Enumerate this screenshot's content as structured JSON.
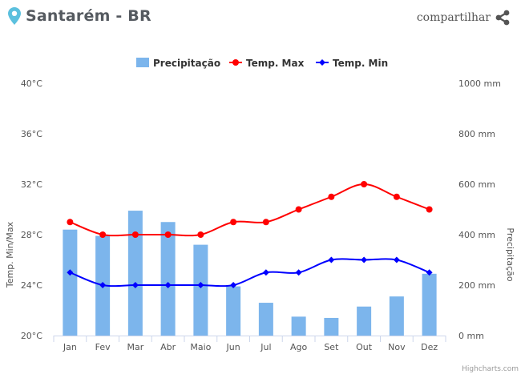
{
  "header": {
    "location": "Santarém - BR",
    "share_label": "compartilhar",
    "pin_icon": "map-pin-icon",
    "share_icon": "share-icon"
  },
  "colors": {
    "precip": "#7cb5ec",
    "max": "#ff0000",
    "min": "#0000ff",
    "title": "#555a60"
  },
  "credits": "Highcharts.com",
  "chart_data": {
    "type": "bar",
    "categories": [
      "Jan",
      "Fev",
      "Mar",
      "Abr",
      "Maio",
      "Jun",
      "Jul",
      "Ago",
      "Set",
      "Out",
      "Nov",
      "Dez"
    ],
    "series": [
      {
        "name": "Precipitação",
        "type": "bar",
        "axis": "right",
        "values": [
          420,
          395,
          495,
          450,
          360,
          195,
          130,
          75,
          70,
          115,
          155,
          245
        ]
      },
      {
        "name": "Temp. Max",
        "type": "line",
        "axis": "left",
        "values": [
          29,
          28,
          28,
          28,
          28,
          29,
          29,
          30,
          31,
          32,
          31,
          30
        ]
      },
      {
        "name": "Temp. Min",
        "type": "line",
        "axis": "left",
        "values": [
          25,
          24,
          24,
          24,
          24,
          24,
          25,
          25,
          26,
          26,
          26,
          25
        ]
      }
    ],
    "ylabel": "Temp. Min/Max",
    "y2label": "Precipitação",
    "ylim": [
      20,
      40
    ],
    "y2lim": [
      0,
      1000
    ],
    "yticks": [
      "20°C",
      "24°C",
      "28°C",
      "32°C",
      "36°C",
      "40°C"
    ],
    "y2ticks": [
      "0 mm",
      "200 mm",
      "400 mm",
      "600 mm",
      "800 mm",
      "1000 mm"
    ],
    "legend_position": "top-center",
    "grid": false
  }
}
